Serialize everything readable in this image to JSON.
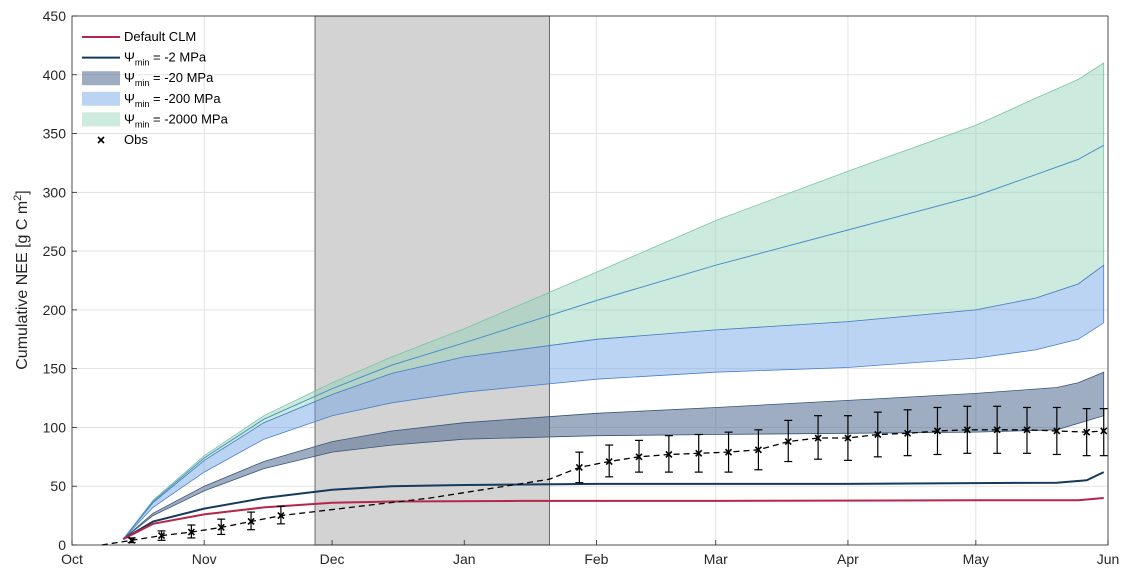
{
  "chart_data": {
    "type": "area",
    "ylabel_main": "Cumulative NEE [g C m",
    "ylabel_sup": "2",
    "ylabel_end": "]",
    "ylim": [
      0,
      450
    ],
    "yticks": [
      0,
      50,
      100,
      150,
      200,
      250,
      300,
      350,
      400,
      450
    ],
    "xlim": [
      "2000-10-01",
      "2001-06-01"
    ],
    "xticks": [
      {
        "date": "2000-10-01",
        "label": "Oct"
      },
      {
        "date": "2000-11-01",
        "label": "Nov"
      },
      {
        "date": "2000-12-01",
        "label": "Dec"
      },
      {
        "date": "2001-01-01",
        "label": "Jan"
      },
      {
        "date": "2001-02-01",
        "label": "Feb"
      },
      {
        "date": "2001-03-01",
        "label": "Mar"
      },
      {
        "date": "2001-04-01",
        "label": "Apr"
      },
      {
        "date": "2001-05-01",
        "label": "May"
      },
      {
        "date": "2001-06-01",
        "label": "Jun"
      }
    ],
    "grid": true,
    "legend_position": "top-left",
    "shaded_period": {
      "start": "2000-11-27",
      "end": "2001-01-21",
      "color": "#d3d3d3"
    },
    "series": [
      {
        "name": "Default CLM",
        "kind": "line",
        "color": "#b5264a",
        "points": [
          [
            "2000-10-13",
            5
          ],
          [
            "2000-10-20",
            18
          ],
          [
            "2000-11-01",
            26
          ],
          [
            "2000-11-15",
            32
          ],
          [
            "2000-12-01",
            36
          ],
          [
            "2000-12-15",
            37
          ],
          [
            "2001-01-15",
            37.5
          ],
          [
            "2001-03-01",
            37.5
          ],
          [
            "2001-05-01",
            38
          ],
          [
            "2001-05-25",
            38
          ],
          [
            "2001-05-31",
            40
          ]
        ]
      },
      {
        "name": "-2 MPa",
        "prefix": "Ψ",
        "sub": "min",
        "kind": "line",
        "color": "#153a5c",
        "points": [
          [
            "2000-10-13",
            5
          ],
          [
            "2000-10-20",
            20
          ],
          [
            "2000-11-01",
            31
          ],
          [
            "2000-11-15",
            40
          ],
          [
            "2000-12-01",
            47
          ],
          [
            "2000-12-15",
            50
          ],
          [
            "2001-01-01",
            51
          ],
          [
            "2001-02-01",
            52
          ],
          [
            "2001-04-01",
            52
          ],
          [
            "2001-05-20",
            53
          ],
          [
            "2001-05-27",
            55
          ],
          [
            "2001-05-31",
            62
          ]
        ]
      },
      {
        "name": "-20 MPa",
        "prefix": "Ψ",
        "sub": "min",
        "kind": "band",
        "fill": "#4e6a8f",
        "fill_opacity": 0.55,
        "stroke": "#3a5577",
        "lower": [
          [
            "2000-10-13",
            5
          ],
          [
            "2000-10-20",
            25
          ],
          [
            "2000-11-01",
            46
          ],
          [
            "2000-11-15",
            65
          ],
          [
            "2000-12-01",
            79
          ],
          [
            "2000-12-15",
            85
          ],
          [
            "2001-01-01",
            90
          ],
          [
            "2001-02-01",
            93
          ],
          [
            "2001-03-01",
            94
          ],
          [
            "2001-04-01",
            95
          ],
          [
            "2001-05-01",
            96
          ],
          [
            "2001-05-20",
            98
          ],
          [
            "2001-05-31",
            110
          ]
        ],
        "upper": [
          [
            "2000-10-13",
            5
          ],
          [
            "2000-10-20",
            27
          ],
          [
            "2000-11-01",
            50
          ],
          [
            "2000-11-15",
            71
          ],
          [
            "2000-12-01",
            88
          ],
          [
            "2000-12-15",
            97
          ],
          [
            "2001-01-01",
            104
          ],
          [
            "2001-02-01",
            112
          ],
          [
            "2001-03-01",
            117
          ],
          [
            "2001-04-01",
            123
          ],
          [
            "2001-05-01",
            129
          ],
          [
            "2001-05-20",
            134
          ],
          [
            "2001-05-25",
            138
          ],
          [
            "2001-05-31",
            147
          ]
        ]
      },
      {
        "name": "-200 MPa",
        "prefix": "Ψ",
        "sub": "min",
        "kind": "band",
        "fill": "#6a9fe6",
        "fill_opacity": 0.45,
        "stroke": "#4a7fc6",
        "lower": [
          [
            "2000-10-13",
            5
          ],
          [
            "2000-10-20",
            32
          ],
          [
            "2000-11-01",
            62
          ],
          [
            "2000-11-15",
            90
          ],
          [
            "2000-12-01",
            110
          ],
          [
            "2000-12-15",
            121
          ],
          [
            "2001-01-01",
            130
          ],
          [
            "2001-02-01",
            141
          ],
          [
            "2001-03-01",
            147
          ],
          [
            "2001-04-01",
            151
          ],
          [
            "2001-05-01",
            159
          ],
          [
            "2001-05-15",
            166
          ],
          [
            "2001-05-25",
            175
          ],
          [
            "2001-05-31",
            189
          ]
        ],
        "upper": [
          [
            "2000-10-13",
            5
          ],
          [
            "2000-10-20",
            36
          ],
          [
            "2000-11-01",
            72
          ],
          [
            "2000-11-15",
            104
          ],
          [
            "2000-12-01",
            128
          ],
          [
            "2000-12-15",
            146
          ],
          [
            "2001-01-01",
            160
          ],
          [
            "2001-02-01",
            175
          ],
          [
            "2001-03-01",
            183
          ],
          [
            "2001-04-01",
            190
          ],
          [
            "2001-05-01",
            200
          ],
          [
            "2001-05-15",
            210
          ],
          [
            "2001-05-25",
            222
          ],
          [
            "2001-05-31",
            238
          ]
        ]
      },
      {
        "name": "-2000 MPa",
        "prefix": "Ψ",
        "sub": "min",
        "kind": "band",
        "fill": "#8fd1b5",
        "fill_opacity": 0.45,
        "stroke": "#7ac4a5",
        "lower": [
          [
            "2000-10-13",
            5
          ],
          [
            "2000-10-20",
            36
          ],
          [
            "2000-11-01",
            72
          ],
          [
            "2000-11-15",
            104
          ],
          [
            "2000-12-01",
            128
          ],
          [
            "2000-12-15",
            146
          ],
          [
            "2001-01-01",
            160
          ],
          [
            "2001-02-01",
            175
          ],
          [
            "2001-03-01",
            183
          ],
          [
            "2001-04-01",
            190
          ],
          [
            "2001-05-01",
            200
          ],
          [
            "2001-05-15",
            210
          ],
          [
            "2001-05-25",
            222
          ],
          [
            "2001-05-31",
            238
          ]
        ],
        "upper": [
          [
            "2000-10-13",
            5
          ],
          [
            "2000-10-20",
            38
          ],
          [
            "2000-11-01",
            76
          ],
          [
            "2000-11-15",
            110
          ],
          [
            "2000-12-01",
            138
          ],
          [
            "2000-12-15",
            160
          ],
          [
            "2001-01-01",
            184
          ],
          [
            "2001-02-01",
            232
          ],
          [
            "2001-03-01",
            276
          ],
          [
            "2001-04-01",
            318
          ],
          [
            "2001-05-01",
            357
          ],
          [
            "2001-05-15",
            380
          ],
          [
            "2001-05-25",
            396
          ],
          [
            "2001-05-31",
            410
          ]
        ]
      },
      {
        "name": "-2000 MPa upper edge",
        "kind": "band_top_line",
        "hidden_legend": true,
        "color": "#4a8fc6",
        "points": [
          [
            "2000-10-13",
            5
          ],
          [
            "2000-10-20",
            37
          ],
          [
            "2000-11-01",
            74
          ],
          [
            "2000-11-15",
            107
          ],
          [
            "2000-12-01",
            133
          ],
          [
            "2000-12-15",
            153
          ],
          [
            "2001-01-01",
            172
          ],
          [
            "2001-02-01",
            208
          ],
          [
            "2001-03-01",
            238
          ],
          [
            "2001-04-01",
            268
          ],
          [
            "2001-05-01",
            297
          ],
          [
            "2001-05-15",
            315
          ],
          [
            "2001-05-25",
            328
          ],
          [
            "2001-05-31",
            340
          ]
        ]
      },
      {
        "name": "Obs",
        "kind": "obs",
        "color": "#000000",
        "points": [
          [
            "2000-10-08",
            0,
            0,
            0
          ],
          [
            "2000-10-15",
            4,
            2,
            6
          ],
          [
            "2000-10-22",
            8,
            4,
            12
          ],
          [
            "2000-10-29",
            11,
            6,
            17
          ],
          [
            "2000-11-05",
            15,
            9,
            22
          ],
          [
            "2000-11-12",
            20,
            13,
            28
          ],
          [
            "2000-11-19",
            25,
            18,
            33
          ],
          [
            "2000-11-26",
            28,
            28,
            28
          ],
          [
            "2000-12-03",
            31,
            31,
            31
          ],
          [
            "2000-12-10",
            34,
            34,
            34
          ],
          [
            "2000-12-17",
            37,
            37,
            37
          ],
          [
            "2000-12-24",
            40,
            40,
            40
          ],
          [
            "2000-12-31",
            44,
            44,
            44
          ],
          [
            "2001-01-07",
            48,
            48,
            48
          ],
          [
            "2001-01-14",
            52,
            52,
            52
          ],
          [
            "2001-01-21",
            56,
            56,
            56
          ],
          [
            "2001-01-28",
            66,
            53,
            79
          ],
          [
            "2001-02-04",
            71,
            58,
            85
          ],
          [
            "2001-02-11",
            75,
            62,
            89
          ],
          [
            "2001-02-18",
            77,
            62,
            93
          ],
          [
            "2001-02-25",
            78,
            62,
            94
          ],
          [
            "2001-03-04",
            79,
            62,
            96
          ],
          [
            "2001-03-11",
            81,
            64,
            98
          ],
          [
            "2001-03-18",
            88,
            71,
            106
          ],
          [
            "2001-03-25",
            91,
            73,
            110
          ],
          [
            "2001-04-01",
            91,
            72,
            110
          ],
          [
            "2001-04-08",
            94,
            75,
            113
          ],
          [
            "2001-04-15",
            95,
            76,
            115
          ],
          [
            "2001-04-22",
            97,
            77,
            117
          ],
          [
            "2001-04-29",
            98,
            78,
            118
          ],
          [
            "2001-05-06",
            98,
            78,
            118
          ],
          [
            "2001-05-13",
            98,
            78,
            117
          ],
          [
            "2001-05-20",
            97,
            77,
            117
          ],
          [
            "2001-05-27",
            96,
            76,
            116
          ],
          [
            "2001-05-31",
            97,
            76,
            116
          ]
        ]
      }
    ]
  },
  "legend": [
    {
      "kind": "line",
      "color": "#b5264a",
      "label": "Default CLM"
    },
    {
      "kind": "line",
      "color": "#153a5c",
      "prefix": "Ψ",
      "sub": "min",
      "label": " = -2 MPa"
    },
    {
      "kind": "patch",
      "color": "#4e6a8f",
      "opacity": 0.55,
      "prefix": "Ψ",
      "sub": "min",
      "label": " = -20 MPa"
    },
    {
      "kind": "patch",
      "color": "#6a9fe6",
      "opacity": 0.45,
      "prefix": "Ψ",
      "sub": "min",
      "label": " = -200 MPa"
    },
    {
      "kind": "patch",
      "color": "#8fd1b5",
      "opacity": 0.45,
      "prefix": "Ψ",
      "sub": "min",
      "label": " = -2000 MPa"
    },
    {
      "kind": "marker",
      "color": "#000000",
      "label": "Obs"
    }
  ]
}
